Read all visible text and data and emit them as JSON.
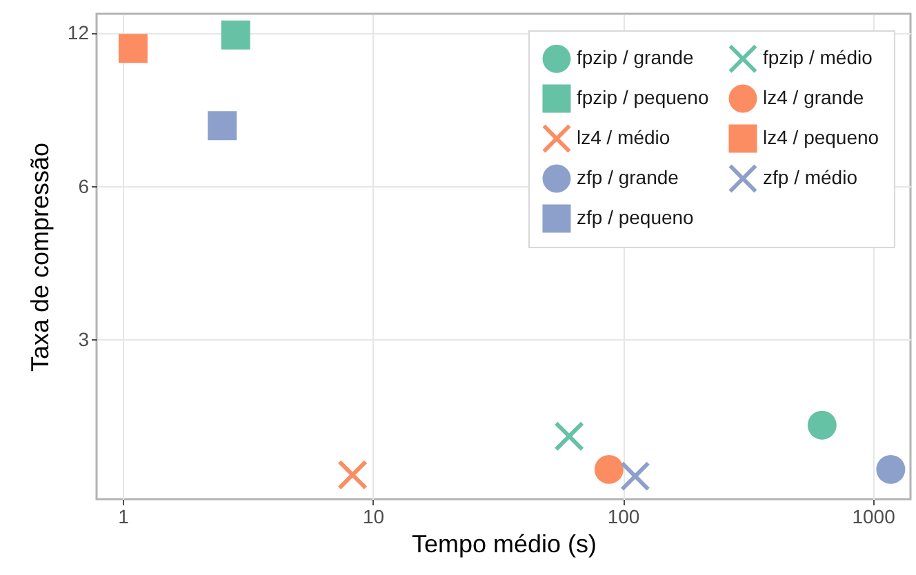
{
  "chart_data": {
    "type": "scatter",
    "xlabel": "Tempo médio (s)",
    "ylabel": "Taxa de compressão",
    "xlim": [
      0.786,
      1413
    ],
    "xticks": [
      1,
      10,
      100,
      1000
    ],
    "ylim": [
      1.46,
      13.1
    ],
    "yticks": [
      3,
      6,
      12
    ],
    "log": "xy",
    "grid": true,
    "legend": "top right",
    "series": [
      {
        "name": "fpzip / grande",
        "color": "#66c2a5",
        "marker": "circle",
        "x": [
          626
        ],
        "values": [
          2.04
        ]
      },
      {
        "name": "fpzip / médio",
        "color": "#66c2a5",
        "marker": "cross",
        "x": [
          61
        ],
        "values": [
          1.94
        ]
      },
      {
        "name": "fpzip / pequeno",
        "color": "#66c2a5",
        "marker": "square",
        "x": [
          2.83
        ],
        "values": [
          11.9
        ]
      },
      {
        "name": "lz4 / grande",
        "color": "#fc8d62",
        "marker": "circle",
        "x": [
          88
        ],
        "values": [
          1.67
        ]
      },
      {
        "name": "lz4 / médio",
        "color": "#fc8d62",
        "marker": "cross",
        "x": [
          8.3
        ],
        "values": [
          1.63
        ]
      },
      {
        "name": "lz4 / pequeno",
        "color": "#fc8d62",
        "marker": "square",
        "x": [
          1.1
        ],
        "values": [
          11.2
        ]
      },
      {
        "name": "zfp / grande",
        "color": "#8da0cb",
        "marker": "circle",
        "x": [
          1178
        ],
        "values": [
          1.67
        ]
      },
      {
        "name": "zfp / médio",
        "color": "#8da0cb",
        "marker": "cross",
        "x": [
          112
        ],
        "values": [
          1.62
        ]
      },
      {
        "name": "zfp / pequeno",
        "color": "#8da0cb",
        "marker": "square",
        "x": [
          2.5
        ],
        "values": [
          7.9
        ]
      }
    ]
  }
}
